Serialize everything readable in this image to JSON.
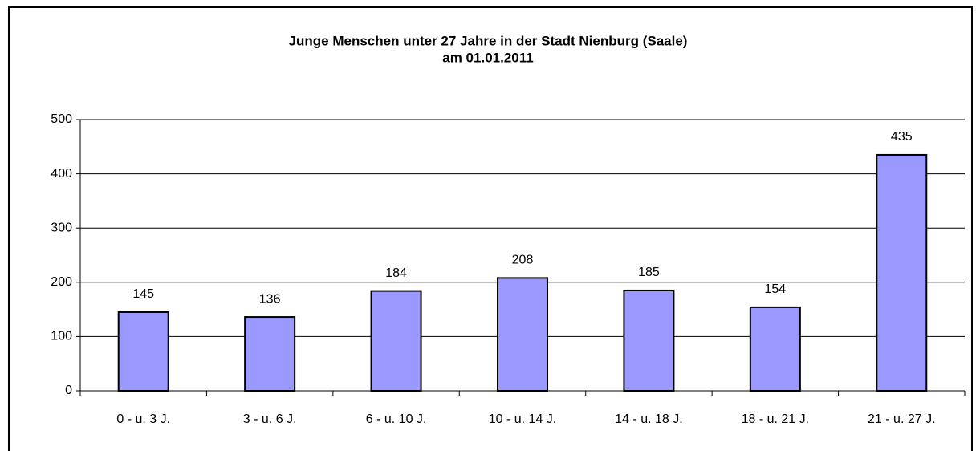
{
  "chart_data": {
    "type": "bar",
    "title": "Junge Menschen unter 27 Jahre in der Stadt Nienburg (Saale)",
    "subtitle": "am 01.01.2011",
    "categories": [
      "0 - u. 3 J.",
      "3 - u. 6 J.",
      "6 - u. 10 J.",
      "10 - u. 14 J.",
      "14 - u. 18 J.",
      "18 - u. 21 J.",
      "21 - u. 27 J."
    ],
    "values": [
      145,
      136,
      184,
      208,
      185,
      154,
      435
    ],
    "color": "#9999ff",
    "ylim": [
      0,
      500
    ],
    "yticks": [
      0,
      100,
      200,
      300,
      400,
      500
    ],
    "grid": true
  }
}
